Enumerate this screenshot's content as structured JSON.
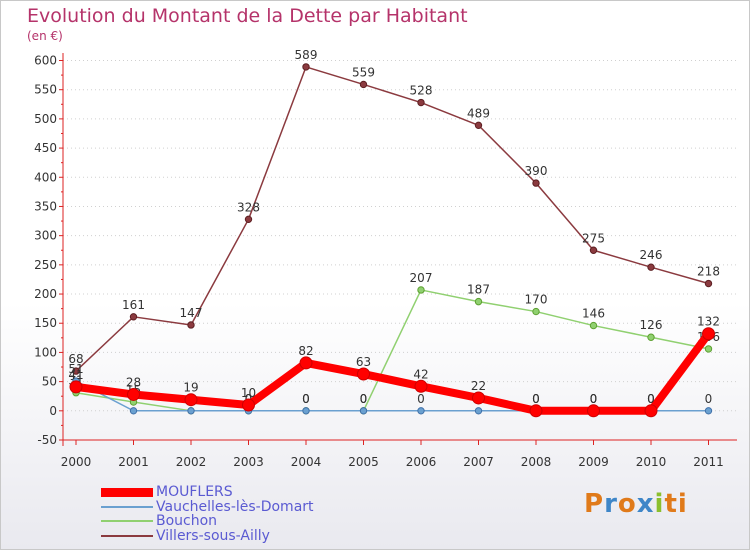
{
  "chart_data": {
    "type": "line",
    "title": "Evolution du Montant de la Dette par Habitant",
    "subtitle": "(en €)",
    "xlabel": "",
    "ylabel": "",
    "ylim": [
      -50,
      600
    ],
    "yticks": [
      "-50",
      "0",
      "50",
      "100",
      "150",
      "200",
      "250",
      "300",
      "350",
      "400",
      "450",
      "500",
      "550",
      "600"
    ],
    "categories": [
      "2000",
      "2001",
      "2002",
      "2003",
      "2004",
      "2005",
      "2006",
      "2007",
      "2008",
      "2009",
      "2010",
      "2011"
    ],
    "series": [
      {
        "name": "Villers-sous-Ailly",
        "color": "#8b3a3f",
        "values": [
          68,
          161,
          147,
          328,
          589,
          559,
          528,
          489,
          390,
          275,
          246,
          218
        ],
        "labels": [
          "68",
          "161",
          "147",
          "328",
          "589",
          "559",
          "528",
          "489",
          "390",
          "275",
          "246",
          "218"
        ]
      },
      {
        "name": "Bouchon",
        "color": "#90d070",
        "values": [
          31,
          15,
          0,
          0,
          0,
          0,
          207,
          187,
          170,
          146,
          126,
          106
        ],
        "labels": [
          "31",
          "15",
          "0",
          "0",
          "0",
          "0",
          "207",
          "187",
          "170",
          "146",
          "126",
          "106"
        ]
      },
      {
        "name": "Vauchelles-lès-Domart",
        "color": "#6aa0d0",
        "values": [
          51,
          0,
          0,
          0,
          0,
          0,
          0,
          0,
          0,
          0,
          0,
          0
        ],
        "labels": [
          "51",
          "",
          "0",
          "0",
          "0",
          "0",
          "0",
          "",
          "0",
          "0",
          "0",
          "0"
        ]
      },
      {
        "name": "MOUFLERS",
        "color": "#ff0000",
        "values": [
          41,
          28,
          19,
          10,
          82,
          63,
          42,
          22,
          0,
          0,
          0,
          132
        ],
        "labels": [
          "41",
          "28",
          "19",
          "10",
          "82",
          "63",
          "42",
          "22",
          "0",
          "0",
          "0",
          "132"
        ]
      }
    ]
  },
  "legend": {
    "items": [
      "MOUFLERS",
      "Vauchelles-lès-Domart",
      "Bouchon",
      "Villers-sous-Ailly"
    ]
  },
  "logo": {
    "letters": [
      "P",
      "r",
      "o",
      "x",
      "i",
      "ti"
    ]
  }
}
